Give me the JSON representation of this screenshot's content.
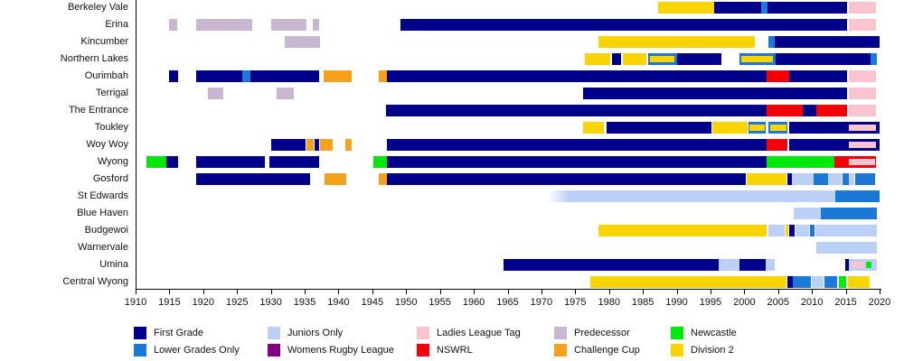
{
  "chart_data": {
    "type": "bar",
    "subtype": "horizontal-timeline-gantt",
    "title": "",
    "xlabel": "",
    "ylabel": "",
    "x_axis": {
      "min": 1910,
      "max": 2020,
      "tick_interval": 5,
      "ticks": [
        1910,
        1915,
        1920,
        1925,
        1930,
        1935,
        1940,
        1945,
        1950,
        1955,
        1960,
        1965,
        1970,
        1975,
        1980,
        1985,
        1990,
        1995,
        2000,
        2005,
        2010,
        2015,
        2020
      ]
    },
    "palette": {
      "first": "#00008B",
      "lower": "#1C78D6",
      "juniors": "#BCD0F5",
      "womens": "#800080",
      "llt": "#F9C4CE",
      "nswrl": "#F40009",
      "pred": "#C9B7D1",
      "cc": "#F5A11C",
      "nc": "#00E80C",
      "div2": "#F9D400"
    },
    "legend": {
      "position": "bottom",
      "columns": [
        {
          "items": [
            {
              "color": "first",
              "label": "First Grade"
            },
            {
              "color": "lower",
              "label": "Lower Grades Only"
            }
          ]
        },
        {
          "items": [
            {
              "color": "juniors",
              "label": "Juniors Only"
            },
            {
              "color": "womens",
              "label": "Womens Rugby League"
            }
          ]
        },
        {
          "items": [
            {
              "color": "llt",
              "label": "Ladies League Tag"
            },
            {
              "color": "nswrl",
              "label": "NSWRL"
            }
          ]
        },
        {
          "items": [
            {
              "color": "pred",
              "label": "Predecessor"
            },
            {
              "color": "cc",
              "label": "Challenge Cup"
            }
          ]
        },
        {
          "items": [
            {
              "color": "nc",
              "label": "Newcastle"
            },
            {
              "color": "div2",
              "label": "Division 2"
            }
          ]
        }
      ]
    },
    "teams": [
      {
        "name": "Berkeley Vale",
        "segments": [
          {
            "s": 1987.3,
            "e": 1995.5,
            "c": "div2"
          },
          {
            "s": 1995.5,
            "e": 2002.5,
            "c": "first"
          },
          {
            "s": 2002.5,
            "e": 2003.4,
            "c": "lower"
          },
          {
            "s": 2003.4,
            "e": 2015.2,
            "c": "first"
          },
          {
            "s": 2015.4,
            "e": 2019.4,
            "c": "llt"
          }
        ]
      },
      {
        "name": "Erina",
        "segments": [
          {
            "s": 1915,
            "e": 1916.2,
            "c": "pred"
          },
          {
            "s": 1919,
            "e": 1927.2,
            "c": "pred"
          },
          {
            "s": 1930,
            "e": 1935.2,
            "c": "pred"
          },
          {
            "s": 1936.2,
            "e": 1937.2,
            "c": "pred"
          },
          {
            "s": 1949.2,
            "e": 2015.2,
            "c": "first"
          },
          {
            "s": 2015.4,
            "e": 2019.4,
            "c": "llt"
          }
        ]
      },
      {
        "name": "Kincumber",
        "segments": [
          {
            "s": 1932.1,
            "e": 1937.2,
            "c": "pred"
          },
          {
            "s": 1978.4,
            "e": 2001.5,
            "c": "div2"
          },
          {
            "s": 2003.5,
            "e": 2004.5,
            "c": "lower"
          },
          {
            "s": 2004.5,
            "e": 2020,
            "c": "first"
          }
        ]
      },
      {
        "name": "Northern Lakes",
        "segments": [
          {
            "s": 1976.4,
            "e": 1980.2,
            "c": "div2"
          },
          {
            "s": 1980.4,
            "e": 1981.8,
            "c": "first"
          },
          {
            "s": 1982,
            "e": 1985.5,
            "c": "div2"
          },
          {
            "s": 1985.8,
            "e": 1990,
            "c": "lower"
          },
          {
            "s": 1990,
            "e": 1996.6,
            "c": "first"
          },
          {
            "s": 1999.3,
            "e": 2004.6,
            "c": "lower"
          },
          {
            "s": 2004.6,
            "e": 2018.6,
            "c": "first"
          },
          {
            "s": 2018.6,
            "e": 2019.6,
            "c": "lower"
          }
        ],
        "overlays": [
          {
            "s": 1986.1,
            "e": 1989.6,
            "c": "div2"
          },
          {
            "s": 1999.6,
            "e": 2004.2,
            "c": "div2"
          }
        ]
      },
      {
        "name": "Ourimbah",
        "segments": [
          {
            "s": 1914.9,
            "e": 1916.3,
            "c": "first"
          },
          {
            "s": 1919,
            "e": 1925.8,
            "c": "first"
          },
          {
            "s": 1925.8,
            "e": 1927,
            "c": "lower"
          },
          {
            "s": 1927,
            "e": 1937.1,
            "c": "first"
          },
          {
            "s": 1937.8,
            "e": 1941.9,
            "c": "cc"
          },
          {
            "s": 1946,
            "e": 1947.1,
            "c": "cc"
          },
          {
            "s": 1947.2,
            "e": 2003.3,
            "c": "first"
          },
          {
            "s": 2003.3,
            "e": 2006.6,
            "c": "nswrl"
          },
          {
            "s": 2006.6,
            "e": 2015.2,
            "c": "first"
          },
          {
            "s": 2015.4,
            "e": 2019.4,
            "c": "llt"
          }
        ]
      },
      {
        "name": "Terrigal",
        "segments": [
          {
            "s": 1920.7,
            "e": 1923,
            "c": "pred"
          },
          {
            "s": 1930.8,
            "e": 1933.4,
            "c": "pred"
          },
          {
            "s": 1976.2,
            "e": 2015.2,
            "c": "first"
          },
          {
            "s": 2015.4,
            "e": 2019.4,
            "c": "llt"
          }
        ]
      },
      {
        "name": "The Entrance",
        "segments": [
          {
            "s": 1947,
            "e": 2003.3,
            "c": "first"
          },
          {
            "s": 2003.3,
            "e": 2008.6,
            "c": "nswrl"
          },
          {
            "s": 2008.6,
            "e": 2010.6,
            "c": "first"
          },
          {
            "s": 2010.6,
            "e": 2015.2,
            "c": "nswrl"
          },
          {
            "s": 2015.4,
            "e": 2019.4,
            "c": "llt"
          }
        ]
      },
      {
        "name": "Toukley",
        "segments": [
          {
            "s": 1976.2,
            "e": 1979.2,
            "c": "div2"
          },
          {
            "s": 1979.6,
            "e": 1995.1,
            "c": "first"
          },
          {
            "s": 1995.3,
            "e": 2000.5,
            "c": "div2"
          },
          {
            "s": 2000.6,
            "e": 2003.2,
            "c": "lower"
          },
          {
            "s": 2003.6,
            "e": 2006.4,
            "c": "lower"
          },
          {
            "s": 2006.6,
            "e": 2020,
            "c": "first"
          }
        ],
        "overlays": [
          {
            "s": 2000.8,
            "e": 2003,
            "c": "div2"
          },
          {
            "s": 2003.8,
            "e": 2006.2,
            "c": "div2"
          },
          {
            "s": 2015.4,
            "e": 2019.4,
            "c": "llt"
          }
        ]
      },
      {
        "name": "Woy Woy",
        "segments": [
          {
            "s": 1930,
            "e": 1935.1,
            "c": "first"
          },
          {
            "s": 1935.3,
            "e": 1936.3,
            "c": "cc"
          },
          {
            "s": 1936.5,
            "e": 1937.1,
            "c": "first"
          },
          {
            "s": 1937.3,
            "e": 1939.1,
            "c": "cc"
          },
          {
            "s": 1941,
            "e": 1942,
            "c": "cc"
          },
          {
            "s": 1947.2,
            "e": 2003.3,
            "c": "first"
          },
          {
            "s": 2003.3,
            "e": 2006.4,
            "c": "nswrl"
          },
          {
            "s": 2006.6,
            "e": 2020,
            "c": "first"
          }
        ],
        "overlays": [
          {
            "s": 2015.4,
            "e": 2019.4,
            "c": "llt"
          }
        ]
      },
      {
        "name": "Wyong",
        "segments": [
          {
            "s": 1911.6,
            "e": 1914.6,
            "c": "nc"
          },
          {
            "s": 1914.6,
            "e": 1916.3,
            "c": "first"
          },
          {
            "s": 1919,
            "e": 1929.1,
            "c": "first"
          },
          {
            "s": 1929.8,
            "e": 1937.1,
            "c": "first"
          },
          {
            "s": 1945.1,
            "e": 1947.1,
            "c": "nc"
          },
          {
            "s": 1947.2,
            "e": 2003.3,
            "c": "first"
          },
          {
            "s": 2003.3,
            "e": 2013.3,
            "c": "nc"
          },
          {
            "s": 2013.3,
            "e": 2019.5,
            "c": "nswrl"
          }
        ],
        "overlays": [
          {
            "s": 2015.4,
            "e": 2019.3,
            "c": "llt"
          }
        ]
      },
      {
        "name": "Gosford",
        "segments": [
          {
            "s": 1919,
            "e": 1935.8,
            "c": "first"
          },
          {
            "s": 1937.9,
            "e": 1941.1,
            "c": "cc"
          },
          {
            "s": 1946,
            "e": 1947.1,
            "c": "cc"
          },
          {
            "s": 1947.2,
            "e": 2000.2,
            "c": "first"
          },
          {
            "s": 2000.4,
            "e": 2006.3,
            "c": "div2"
          },
          {
            "s": 2006.4,
            "e": 2007,
            "c": "first"
          },
          {
            "s": 2007,
            "e": 2010.2,
            "c": "juniors"
          },
          {
            "s": 2010.2,
            "e": 2012.4,
            "c": "lower"
          },
          {
            "s": 2012.4,
            "e": 2014.4,
            "c": "juniors"
          },
          {
            "s": 2014.5,
            "e": 2015.4,
            "c": "lower"
          },
          {
            "s": 2015.5,
            "e": 2016.3,
            "c": "juniors"
          },
          {
            "s": 2016.4,
            "e": 2019.3,
            "c": "lower"
          }
        ]
      },
      {
        "name": "St Edwards",
        "segments": [
          {
            "s": 1971,
            "e": 2013.5,
            "c": "juniors",
            "fade": true
          },
          {
            "s": 2013.5,
            "e": 2020,
            "c": "lower"
          }
        ]
      },
      {
        "name": "Blue Haven",
        "segments": [
          {
            "s": 2007.3,
            "e": 2011.3,
            "c": "juniors"
          },
          {
            "s": 2011.3,
            "e": 2019.6,
            "c": "lower"
          }
        ]
      },
      {
        "name": "Budgewoi",
        "segments": [
          {
            "s": 1978.4,
            "e": 2003.3,
            "c": "div2"
          },
          {
            "s": 2003.6,
            "e": 2006,
            "c": "juniors"
          },
          {
            "s": 2006.1,
            "e": 2006.5,
            "c": "div2"
          },
          {
            "s": 2006.7,
            "e": 2007.4,
            "c": "first"
          },
          {
            "s": 2007.6,
            "e": 2009.6,
            "c": "juniors"
          },
          {
            "s": 2009.7,
            "e": 2010.4,
            "c": "lower"
          },
          {
            "s": 2010.5,
            "e": 2019.6,
            "c": "juniors"
          }
        ]
      },
      {
        "name": "Warnervale",
        "segments": [
          {
            "s": 2010.6,
            "e": 2019.6,
            "c": "juniors"
          }
        ]
      },
      {
        "name": "Umina",
        "segments": [
          {
            "s": 1964.4,
            "e": 1996.2,
            "c": "first"
          },
          {
            "s": 1996.2,
            "e": 1999.3,
            "c": "juniors"
          },
          {
            "s": 1999.3,
            "e": 2003.2,
            "c": "first"
          },
          {
            "s": 2003.2,
            "e": 2004.5,
            "c": "juniors"
          },
          {
            "s": 2014.9,
            "e": 2015.5,
            "c": "first"
          },
          {
            "s": 2015.5,
            "e": 2019.6,
            "c": "juniors"
          }
        ],
        "overlays": [
          {
            "s": 2015.9,
            "e": 2017.8,
            "c": "llt"
          },
          {
            "s": 2018,
            "e": 2018.8,
            "c": "nc"
          }
        ]
      },
      {
        "name": "Central Wyong",
        "segments": [
          {
            "s": 1977.2,
            "e": 2006.3,
            "c": "div2"
          },
          {
            "s": 2006.4,
            "e": 2007.2,
            "c": "first"
          },
          {
            "s": 2007.2,
            "e": 2009.8,
            "c": "lower"
          },
          {
            "s": 2010,
            "e": 2011.7,
            "c": "juniors"
          },
          {
            "s": 2011.8,
            "e": 2013.7,
            "c": "lower"
          },
          {
            "s": 2014,
            "e": 2015.1,
            "c": "nc"
          },
          {
            "s": 2015.3,
            "e": 2018.5,
            "c": "div2"
          }
        ]
      }
    ]
  }
}
